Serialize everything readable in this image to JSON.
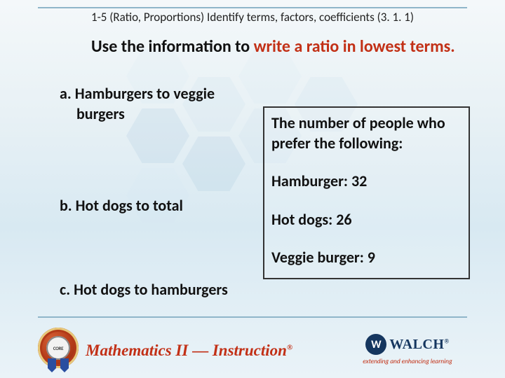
{
  "colors": {
    "accent_red": "#c23016",
    "rule": "#8fb6c9",
    "text": "#111111",
    "walch_blue": "#15365f",
    "box_border": "#333333",
    "bg_top": "#f4f8fa",
    "bg_bottom": "#eaf3f8"
  },
  "header": {
    "text": "1-5 (Ratio, Proportions) Identify terms, factors, coefficients (3. 1. 1)"
  },
  "instruction": {
    "prefix": "Use the information to ",
    "highlight": "write a ratio in lowest terms.",
    "suffix": ""
  },
  "questions": {
    "a": {
      "label": "a.",
      "line1": "Hamburgers to veggie",
      "line2": "burgers"
    },
    "b": {
      "label": "b.",
      "text": "Hot dogs to total"
    },
    "c": {
      "label": "c.",
      "text": "Hot dogs to hamburgers"
    }
  },
  "databox": {
    "intro": "The number of people who prefer the following:",
    "rows": [
      {
        "label": "Hamburger",
        "value": 32
      },
      {
        "label": "Hot dogs",
        "value": 26
      },
      {
        "label": "Veggie burger",
        "value": 9
      }
    ]
  },
  "footer": {
    "badge_core": "CORE",
    "title_main": "Mathematics II",
    "title_dash": " — ",
    "title_sub": "Instruction",
    "reg": "®"
  },
  "walch": {
    "mark": "W",
    "name": "WALCH",
    "reg": "®",
    "tagline": "extending and enhancing learning"
  }
}
